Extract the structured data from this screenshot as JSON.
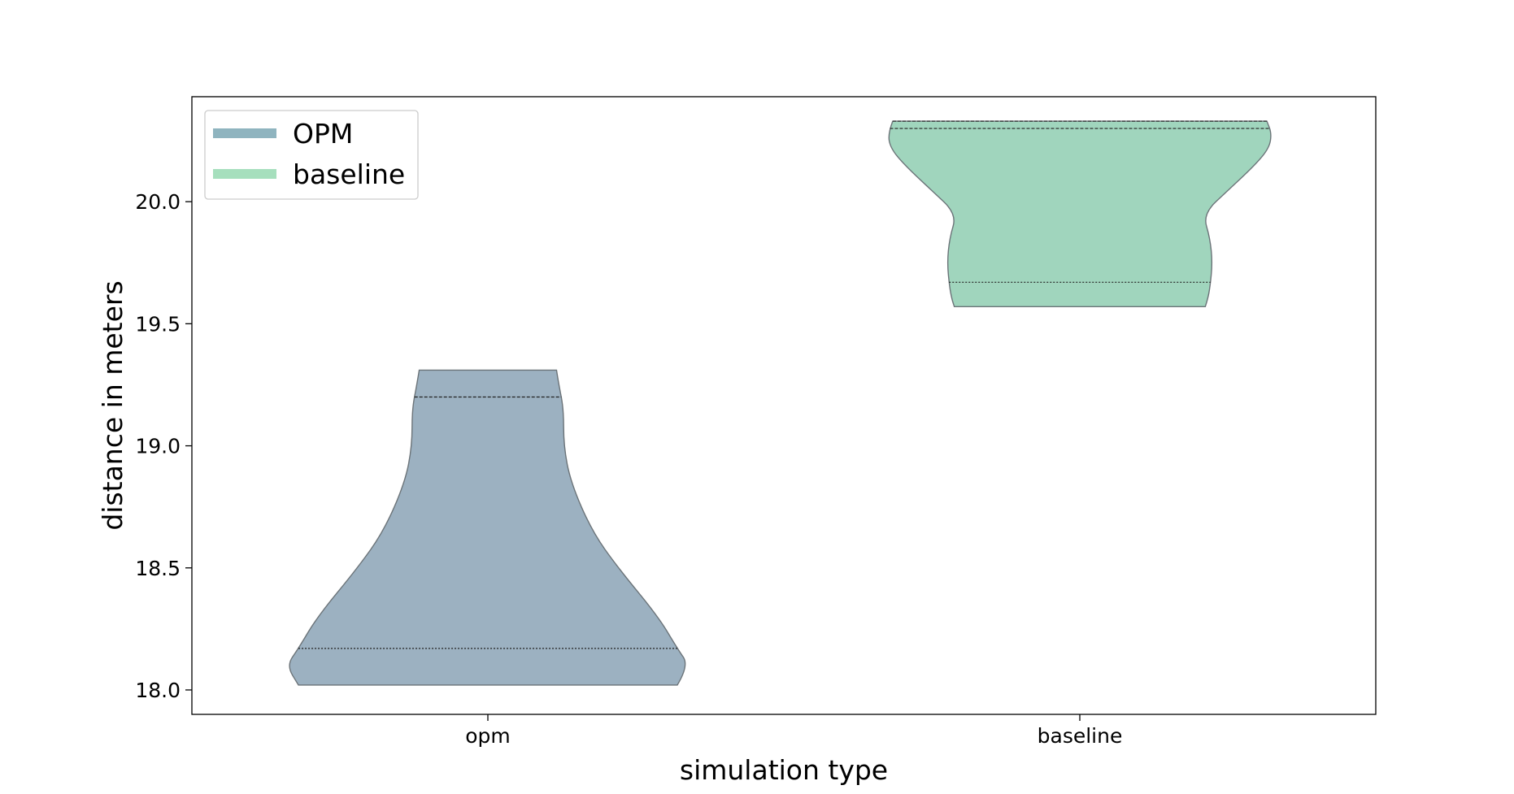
{
  "chart_data": {
    "type": "violin",
    "title": "",
    "xlabel": "simulation type",
    "ylabel": "distance in meters",
    "categories": [
      "opm",
      "baseline"
    ],
    "ylim": [
      17.9,
      20.43
    ],
    "yticks": [
      18.0,
      18.5,
      19.0,
      19.5,
      20.0
    ],
    "ytick_labels": [
      "18.0",
      "18.5",
      "19.0",
      "19.5",
      "20.0"
    ],
    "legend": {
      "placement": "top-left",
      "entries": [
        {
          "label": "OPM",
          "color": "#8fb4bf"
        },
        {
          "label": "baseline",
          "color": "#a6dfbd"
        }
      ]
    },
    "series": [
      {
        "category": "opm",
        "color": "#9cb1c1",
        "min": 18.02,
        "max": 19.31,
        "quartile_lines": [
          18.17,
          19.2
        ],
        "profile": [
          {
            "y": 18.02,
            "w": 0.8
          },
          {
            "y": 18.1,
            "w": 0.85
          },
          {
            "y": 18.17,
            "w": 0.8
          },
          {
            "y": 18.3,
            "w": 0.72
          },
          {
            "y": 18.5,
            "w": 0.55
          },
          {
            "y": 18.65,
            "w": 0.44
          },
          {
            "y": 18.85,
            "w": 0.35
          },
          {
            "y": 19.0,
            "w": 0.32
          },
          {
            "y": 19.15,
            "w": 0.32
          },
          {
            "y": 19.25,
            "w": 0.3
          },
          {
            "y": 19.31,
            "w": 0.29
          }
        ]
      },
      {
        "category": "baseline",
        "color": "#a0d5bd",
        "min": 19.57,
        "max": 20.33,
        "quartile_lines": [
          19.67,
          20.3,
          20.33
        ],
        "profile": [
          {
            "y": 19.57,
            "w": 0.53
          },
          {
            "y": 19.6,
            "w": 0.54
          },
          {
            "y": 19.65,
            "w": 0.55
          },
          {
            "y": 19.75,
            "w": 0.56
          },
          {
            "y": 19.85,
            "w": 0.55
          },
          {
            "y": 19.95,
            "w": 0.52
          },
          {
            "y": 20.05,
            "w": 0.63
          },
          {
            "y": 20.15,
            "w": 0.74
          },
          {
            "y": 20.22,
            "w": 0.8
          },
          {
            "y": 20.28,
            "w": 0.81
          },
          {
            "y": 20.33,
            "w": 0.79
          }
        ]
      }
    ]
  }
}
